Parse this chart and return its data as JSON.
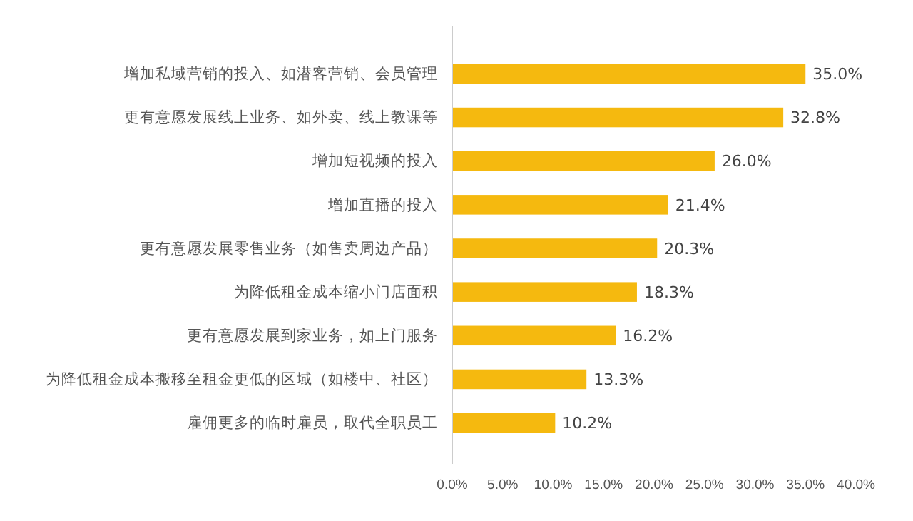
{
  "chart_data": {
    "type": "bar",
    "orientation": "horizontal",
    "categories": [
      "增加私域营销的投入、如潜客营销、会员管理",
      "更有意愿发展线上业务、如外卖、线上教课等",
      "增加短视频的投入",
      "增加直播的投入",
      "更有意愿发展零售业务（如售卖周边产品）",
      "为降低租金成本缩小门店面积",
      "更有意愿发展到家业务，如上门服务",
      "为降低租金成本搬移至租金更低的区域（如楼中、社区）",
      "雇佣更多的临时雇员，取代全职员工"
    ],
    "values": [
      35.0,
      32.8,
      26.0,
      21.4,
      20.3,
      18.3,
      16.2,
      13.3,
      10.2
    ],
    "color": "#f5b90f",
    "value_labels": [
      "35.0%",
      "32.8%",
      "26.0%",
      "21.4%",
      "20.3%",
      "18.3%",
      "16.2%",
      "13.3%",
      "10.2%"
    ],
    "xlim": [
      0,
      40
    ],
    "xticks": [
      {
        "value": 0,
        "label": "0.0%"
      },
      {
        "value": 5,
        "label": "5.0%"
      },
      {
        "value": 10,
        "label": "10.0%"
      },
      {
        "value": 15,
        "label": "15.0%"
      },
      {
        "value": 20,
        "label": "20.0%"
      },
      {
        "value": 25,
        "label": "25.0%"
      },
      {
        "value": 30,
        "label": "30.0%"
      },
      {
        "value": 35,
        "label": "35.0%"
      },
      {
        "value": 40,
        "label": "40.0%"
      }
    ],
    "grid": false
  }
}
